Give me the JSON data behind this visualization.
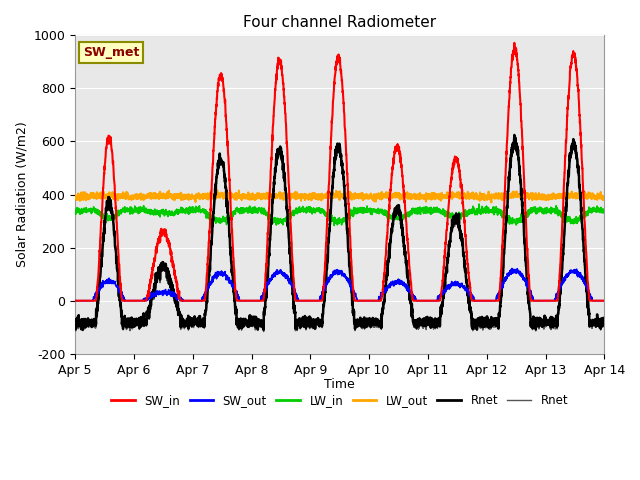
{
  "title": "Four channel Radiometer",
  "ylabel": "Solar Radiation (W/m2)",
  "xlabel": "Time",
  "xlim": [
    0,
    9
  ],
  "ylim": [
    -200,
    1000
  ],
  "yticks": [
    -200,
    0,
    200,
    400,
    600,
    800,
    1000
  ],
  "xtick_labels": [
    "Apr 5",
    "Apr 6",
    "Apr 7",
    "Apr 8",
    "Apr 9",
    "Apr 10",
    "Apr 11",
    "Apr 12",
    "Apr 13",
    "Apr 14"
  ],
  "annotation_text": "SW_met",
  "annotation_color": "#8B0000",
  "annotation_bg": "#FFFFC0",
  "annotation_border": "#8B8B00",
  "colors": {
    "SW_in": "#FF0000",
    "SW_out": "#0000FF",
    "LW_in": "#00CC00",
    "LW_out": "#FFA500",
    "Rnet_thick": "#000000",
    "Rnet_thin": "#555555"
  },
  "background_color": "#E8E8E8",
  "figure_bg": "#FFFFFF",
  "day_peaks_sw_in": [
    620,
    260,
    850,
    905,
    915,
    580,
    535,
    950,
    930
  ],
  "day_widths": [
    0.45,
    0.6,
    0.55,
    0.55,
    0.55,
    0.55,
    0.55,
    0.55,
    0.55
  ],
  "day_offsets": [
    0.35,
    0.2,
    0.2,
    0.2,
    0.2,
    0.2,
    0.2,
    0.2,
    0.2
  ],
  "lw_out_base": 390,
  "lw_in_base": 340,
  "night_rnet": -80
}
